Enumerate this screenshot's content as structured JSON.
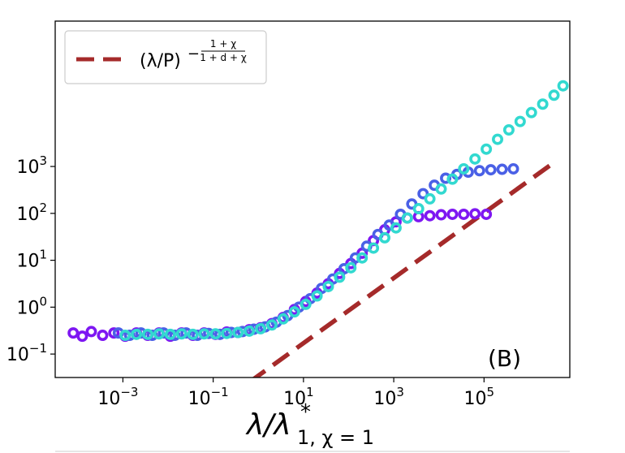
{
  "chart_data": {
    "type": "scatter",
    "xscale": "log",
    "yscale": "log",
    "xlim_log10": [
      -4.5,
      6.9
    ],
    "ylim_log10": [
      -1.5,
      6.1
    ],
    "xlabel": "λ/λ",
    "xlabel_sup": "*",
    "xlabel_sub": "1, χ = 1",
    "panel_label": "(B)",
    "x_ticks": [
      {
        "exp": -3,
        "base": "10",
        "power": "−3"
      },
      {
        "exp": -1,
        "base": "10",
        "power": "−1"
      },
      {
        "exp": 1,
        "base": "10",
        "power": "1"
      },
      {
        "exp": 3,
        "base": "10",
        "power": "3"
      },
      {
        "exp": 5,
        "base": "10",
        "power": "5"
      }
    ],
    "y_ticks": [
      {
        "exp": -1,
        "base": "10",
        "power": "−1"
      },
      {
        "exp": 0,
        "base": "10",
        "power": "0"
      },
      {
        "exp": 1,
        "base": "10",
        "power": "1"
      },
      {
        "exp": 2,
        "base": "10",
        "power": "2"
      },
      {
        "exp": 3,
        "base": "10",
        "power": "3"
      }
    ],
    "legend": {
      "placement": "top-left",
      "label_main": "(λ/P)",
      "label_exp_prefix": "−",
      "label_exp_num": "1 + χ",
      "label_exp_den": "1 + d + χ"
    },
    "reference_line": {
      "style": "dashed",
      "color": "#a52a2a",
      "points_log10": [
        [
          -0.2,
          -1.6
        ],
        [
          6.5,
          3.05
        ]
      ]
    },
    "series": [
      {
        "name": "purple",
        "color": "#7e17f2",
        "log10_points": [
          [
            -4.1,
            -0.55
          ],
          [
            -3.9,
            -0.62
          ],
          [
            -3.7,
            -0.52
          ],
          [
            -3.45,
            -0.6
          ],
          [
            -3.2,
            -0.55
          ],
          [
            -2.95,
            -0.62
          ],
          [
            -2.7,
            -0.55
          ],
          [
            -2.45,
            -0.6
          ],
          [
            -2.2,
            -0.55
          ],
          [
            -1.95,
            -0.62
          ],
          [
            -1.7,
            -0.55
          ],
          [
            -1.45,
            -0.6
          ],
          [
            -1.2,
            -0.55
          ],
          [
            -0.95,
            -0.58
          ],
          [
            -0.7,
            -0.53
          ],
          [
            -0.45,
            -0.54
          ],
          [
            -0.2,
            -0.48
          ],
          [
            0.05,
            -0.44
          ],
          [
            0.3,
            -0.35
          ],
          [
            0.55,
            -0.22
          ],
          [
            0.8,
            -0.05
          ],
          [
            1.05,
            0.12
          ],
          [
            1.3,
            0.3
          ],
          [
            1.55,
            0.5
          ],
          [
            1.8,
            0.72
          ],
          [
            2.05,
            0.93
          ],
          [
            2.3,
            1.15
          ],
          [
            2.55,
            1.42
          ],
          [
            2.8,
            1.65
          ],
          [
            3.05,
            1.82
          ],
          [
            3.3,
            1.9
          ],
          [
            3.55,
            1.93
          ],
          [
            3.8,
            1.95
          ],
          [
            4.05,
            1.97
          ],
          [
            4.3,
            1.98
          ],
          [
            4.55,
            1.98
          ],
          [
            4.8,
            1.99
          ],
          [
            5.05,
            1.98
          ]
        ]
      },
      {
        "name": "blue",
        "color": "#4a60e6",
        "log10_points": [
          [
            -3.1,
            -0.55
          ],
          [
            -2.85,
            -0.6
          ],
          [
            -2.6,
            -0.55
          ],
          [
            -2.35,
            -0.6
          ],
          [
            -2.1,
            -0.55
          ],
          [
            -1.85,
            -0.6
          ],
          [
            -1.6,
            -0.55
          ],
          [
            -1.35,
            -0.6
          ],
          [
            -1.1,
            -0.56
          ],
          [
            -0.85,
            -0.58
          ],
          [
            -0.6,
            -0.54
          ],
          [
            -0.35,
            -0.52
          ],
          [
            -0.1,
            -0.47
          ],
          [
            0.15,
            -0.42
          ],
          [
            0.4,
            -0.32
          ],
          [
            0.65,
            -0.18
          ],
          [
            0.9,
            0.0
          ],
          [
            1.15,
            0.18
          ],
          [
            1.4,
            0.4
          ],
          [
            1.65,
            0.6
          ],
          [
            1.9,
            0.82
          ],
          [
            2.15,
            1.05
          ],
          [
            2.4,
            1.3
          ],
          [
            2.65,
            1.55
          ],
          [
            2.9,
            1.75
          ],
          [
            3.15,
            1.98
          ],
          [
            3.4,
            2.2
          ],
          [
            3.65,
            2.42
          ],
          [
            3.9,
            2.6
          ],
          [
            4.15,
            2.75
          ],
          [
            4.4,
            2.83
          ],
          [
            4.65,
            2.88
          ],
          [
            4.9,
            2.91
          ],
          [
            5.15,
            2.93
          ],
          [
            5.4,
            2.94
          ],
          [
            5.65,
            2.95
          ]
        ]
      },
      {
        "name": "cyan",
        "color": "#32d9d0",
        "log10_points": [
          [
            -2.95,
            -0.6
          ],
          [
            -2.7,
            -0.58
          ],
          [
            -2.45,
            -0.58
          ],
          [
            -2.2,
            -0.57
          ],
          [
            -1.95,
            -0.58
          ],
          [
            -1.7,
            -0.57
          ],
          [
            -1.45,
            -0.58
          ],
          [
            -1.2,
            -0.57
          ],
          [
            -0.95,
            -0.57
          ],
          [
            -0.7,
            -0.56
          ],
          [
            -0.45,
            -0.54
          ],
          [
            -0.2,
            -0.51
          ],
          [
            0.05,
            -0.46
          ],
          [
            0.3,
            -0.38
          ],
          [
            0.55,
            -0.25
          ],
          [
            0.8,
            -0.1
          ],
          [
            1.05,
            0.06
          ],
          [
            1.3,
            0.24
          ],
          [
            1.55,
            0.44
          ],
          [
            1.8,
            0.64
          ],
          [
            2.05,
            0.84
          ],
          [
            2.3,
            1.05
          ],
          [
            2.55,
            1.26
          ],
          [
            2.8,
            1.48
          ],
          [
            3.05,
            1.69
          ],
          [
            3.3,
            1.9
          ],
          [
            3.55,
            2.1
          ],
          [
            3.8,
            2.31
          ],
          [
            4.05,
            2.52
          ],
          [
            4.3,
            2.73
          ],
          [
            4.55,
            2.95
          ],
          [
            4.8,
            3.16
          ],
          [
            5.05,
            3.37
          ],
          [
            5.3,
            3.58
          ],
          [
            5.55,
            3.78
          ],
          [
            5.8,
            3.96
          ],
          [
            6.05,
            4.15
          ],
          [
            6.3,
            4.33
          ],
          [
            6.55,
            4.52
          ],
          [
            6.75,
            4.72
          ]
        ]
      }
    ]
  }
}
